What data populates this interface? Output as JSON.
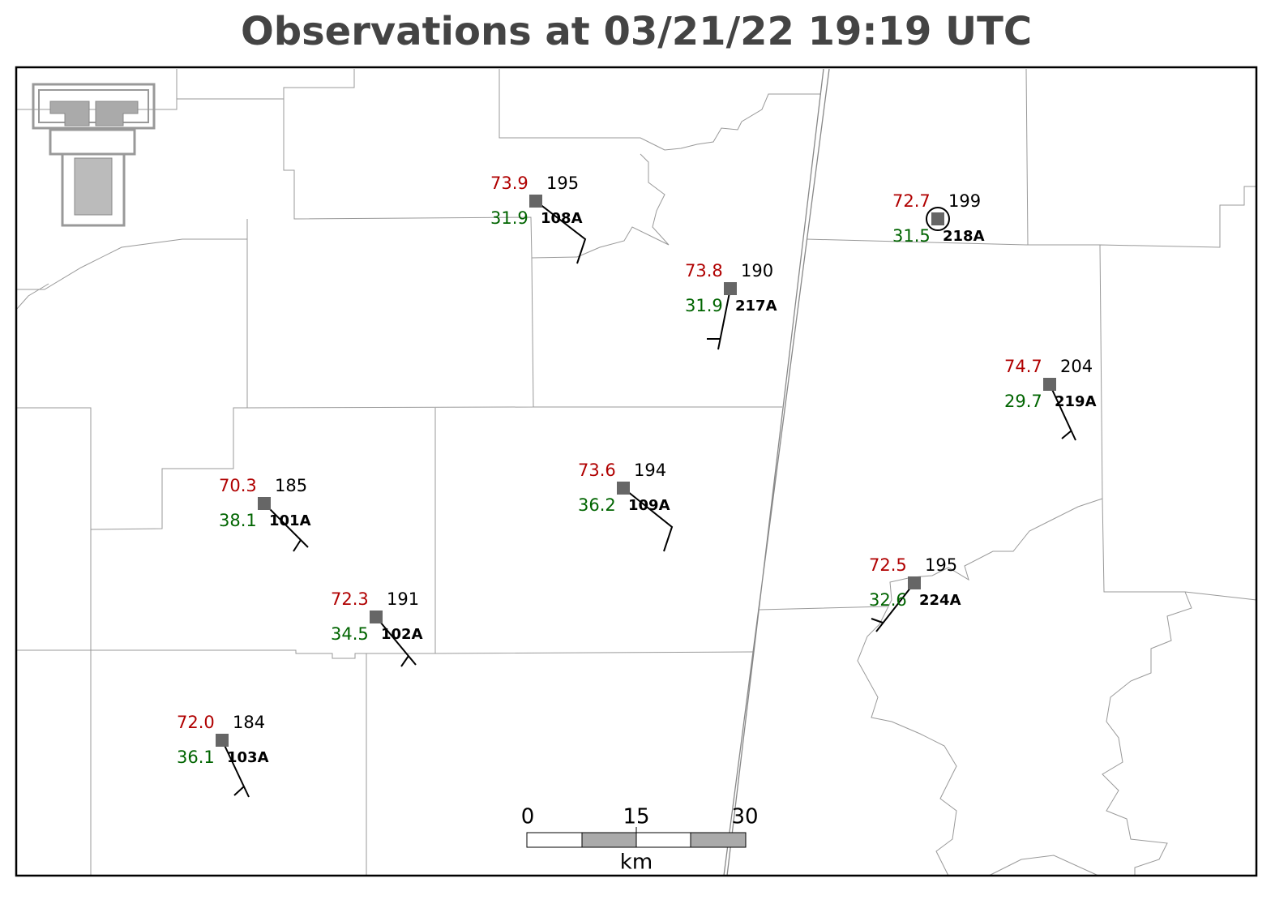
{
  "header": {
    "title": "Observations at 03/21/22 19:19 UTC"
  },
  "stations": [
    {
      "id": "108A",
      "temperature": "73.9",
      "dewpoint": "31.9",
      "pressure": "195"
    },
    {
      "id": "217A",
      "temperature": "73.8",
      "dewpoint": "31.9",
      "pressure": "190"
    },
    {
      "id": "218A",
      "temperature": "72.7",
      "dewpoint": "31.5",
      "pressure": "199"
    },
    {
      "id": "219A",
      "temperature": "74.7",
      "dewpoint": "29.7",
      "pressure": "204"
    },
    {
      "id": "101A",
      "temperature": "70.3",
      "dewpoint": "38.1",
      "pressure": "185"
    },
    {
      "id": "109A",
      "temperature": "73.6",
      "dewpoint": "36.2",
      "pressure": "194"
    },
    {
      "id": "102A",
      "temperature": "72.3",
      "dewpoint": "34.5",
      "pressure": "191"
    },
    {
      "id": "103A",
      "temperature": "72.0",
      "dewpoint": "36.1",
      "pressure": "184"
    },
    {
      "id": "224A",
      "temperature": "72.5",
      "dewpoint": "32.6",
      "pressure": "195"
    }
  ],
  "scale_bar": {
    "labels": [
      "0",
      "15",
      "30"
    ],
    "unit": "km"
  }
}
